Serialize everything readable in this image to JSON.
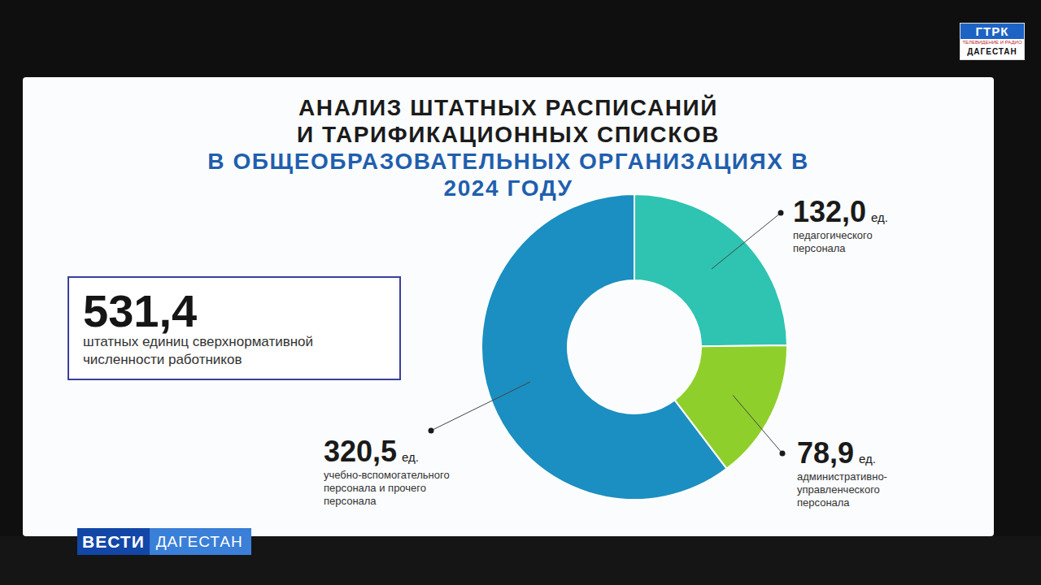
{
  "chart_data": {
    "type": "donut",
    "title": "АНАЛИЗ ШТАТНЫХ РАСПИСАНИЙ И ТАРИФИКАЦИОННЫХ СПИСКОВ",
    "subtitle": "В ОБЩЕОБРАЗОВАТЕЛЬНЫХ ОРГАНИЗАЦИЯХ В 2024 ГОДУ",
    "categories": [
      "педагогического персонала",
      "административно-управленческого персонала",
      "учебно-вспомогательного персонала и прочего персонала"
    ],
    "values": [
      132.0,
      78.9,
      320.5
    ],
    "value_labels": [
      "132,0",
      "78,9",
      "320,5"
    ],
    "unit": "ед.",
    "colors": [
      "#2ec4b1",
      "#8fcf2c",
      "#1b8fc1"
    ],
    "data_labels": true,
    "annotations": [
      {
        "value": 531.4,
        "label": "531,4",
        "text": "штатных единиц сверхнормативной численности работников"
      }
    ],
    "channel_logo": [
      "ГТРК",
      "ТЕЛЕВИДЕНИЕ И РАДИО",
      "ДАГЕСТАН"
    ],
    "program_logo": [
      "ВЕСТИ",
      "ДАГЕСТАН"
    ]
  }
}
